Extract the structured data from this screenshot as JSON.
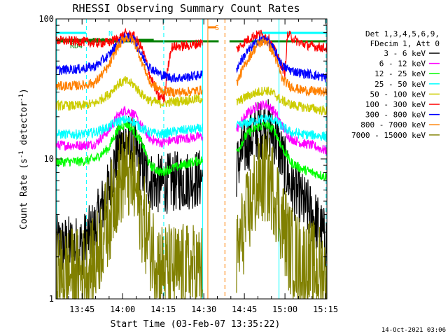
{
  "chart_data": {
    "type": "line",
    "title": "RHESSI Observing Summary Count Rates",
    "xlabel": "Start Time (03-Feb-07 13:35:22)",
    "ylabel": "Count Rate (s⁻¹ detector⁻¹)",
    "ylabel_parts": [
      "Count Rate (s",
      "-1",
      " detector",
      "-1",
      ")"
    ],
    "yscale": "log",
    "ylim": [
      1,
      100
    ],
    "xlim_minutes": [
      35.37,
      135.5
    ],
    "x_unit": "minutes after 13:00 UT",
    "x_ticks": [
      {
        "m": 45,
        "label": "13:45"
      },
      {
        "m": 60,
        "label": "14:00"
      },
      {
        "m": 75,
        "label": "14:15"
      },
      {
        "m": 90,
        "label": "14:30"
      },
      {
        "m": 105,
        "label": "14:45"
      },
      {
        "m": 120,
        "label": "15:00"
      },
      {
        "m": 135,
        "label": "15:15"
      }
    ],
    "y_ticks": [
      {
        "v": 1,
        "label": "1"
      },
      {
        "v": 10,
        "label": "10"
      },
      {
        "v": 100,
        "label": "100"
      }
    ],
    "legend": {
      "placement": "right",
      "header": [
        "Det 1,3,4,5,6,9,",
        "FDecim 1, Att 0"
      ],
      "entries": [
        {
          "label": "3 - 6 keV",
          "color": "#000000"
        },
        {
          "label": "6 - 12 keV",
          "color": "#ff00ff"
        },
        {
          "label": "12 - 25 keV",
          "color": "#00ff00"
        },
        {
          "label": "25 - 50 keV",
          "color": "#00ffff"
        },
        {
          "label": "50 - 100 keV",
          "color": "#cccc00"
        },
        {
          "label": "100 - 300 keV",
          "color": "#ff0000"
        },
        {
          "label": "300 - 800 keV",
          "color": "#0000ff"
        },
        {
          "label": "800 - 7000 keV",
          "color": "#ff8000"
        },
        {
          "label": "7000 - 15000 keV",
          "color": "#808000"
        }
      ]
    },
    "gaps_minutes": [
      [
        89.6,
        102.0
      ]
    ],
    "series": [
      {
        "name": "3 - 6 keV",
        "color": "#000000",
        "x": [
          35.5,
          45,
          50,
          55,
          58,
          61,
          64,
          67,
          70,
          74,
          78,
          82,
          86,
          89.5,
          102,
          106,
          110,
          113,
          116,
          119,
          122,
          126,
          130,
          135
        ],
        "y": [
          2.4,
          2.4,
          3.2,
          6.0,
          11,
          13.5,
          12,
          9,
          7,
          6.5,
          6.8,
          7.0,
          7.2,
          7.2,
          8.5,
          13,
          16,
          17,
          15,
          10,
          6.5,
          5.0,
          4.0,
          2.6
        ]
      },
      {
        "name": "6 - 12 keV",
        "color": "#ff00ff",
        "x": [
          35.5,
          45,
          50,
          55,
          58,
          61,
          64,
          67,
          70,
          74,
          78,
          82,
          86,
          89.5,
          102,
          106,
          110,
          113,
          116,
          119,
          122,
          126,
          130,
          135
        ],
        "y": [
          12.5,
          12.5,
          12.8,
          16,
          20,
          22.5,
          21,
          17,
          14,
          13,
          13.5,
          14,
          14.2,
          14.5,
          16,
          21,
          24,
          24.5,
          22,
          17,
          14,
          13,
          12.5,
          11.5
        ]
      },
      {
        "name": "12 - 25 keV",
        "color": "#00ff00",
        "x": [
          35.5,
          45,
          50,
          55,
          58,
          61,
          64,
          67,
          70,
          74,
          78,
          82,
          86,
          89.5,
          102,
          106,
          110,
          113,
          116,
          119,
          122,
          126,
          130,
          135
        ],
        "y": [
          9.5,
          9.6,
          10,
          12,
          16,
          18,
          16,
          13,
          9.0,
          8.0,
          8.5,
          9.0,
          9.5,
          9.8,
          11,
          15,
          17,
          17.5,
          16,
          12,
          9.5,
          8.5,
          8.0,
          7.5
        ]
      },
      {
        "name": "25 - 50 keV",
        "color": "#00ffff",
        "x": [
          35.5,
          45,
          50,
          55,
          58,
          61,
          64,
          67,
          70,
          74,
          78,
          82,
          86,
          89.5,
          102,
          106,
          110,
          113,
          116,
          119,
          122,
          126,
          130,
          135
        ],
        "y": [
          15,
          15,
          15.5,
          17,
          18.5,
          19,
          18.5,
          16.5,
          15.5,
          15,
          15.5,
          16,
          16.2,
          16.5,
          17,
          18,
          19,
          19.5,
          19,
          17,
          15.5,
          15,
          14.8,
          14.5
        ]
      },
      {
        "name": "50 - 100 keV",
        "color": "#cccc00",
        "x": [
          35.5,
          45,
          50,
          55,
          58,
          61,
          64,
          67,
          70,
          74,
          78,
          82,
          86,
          89.5,
          102,
          106,
          110,
          113,
          116,
          119,
          122,
          126,
          130,
          135
        ],
        "y": [
          24,
          24,
          25,
          29,
          34,
          36,
          34,
          29,
          26,
          25,
          25.5,
          26,
          26.5,
          27,
          25,
          28,
          30,
          31,
          29,
          26,
          24.5,
          23.5,
          23,
          22
        ]
      },
      {
        "name": "100 - 300 keV",
        "color": "#ff0000",
        "x": [
          35.5,
          45,
          50,
          55,
          58,
          61,
          64,
          67,
          70,
          73,
          75.5,
          78,
          82,
          86,
          89.5,
          102,
          105,
          108,
          111,
          114,
          117,
          120,
          121,
          124,
          127,
          130,
          135
        ],
        "y": [
          70,
          69,
          67,
          68,
          72,
          78,
          76,
          62,
          40,
          28,
          27,
          63,
          64,
          65,
          68,
          60,
          68,
          75,
          78,
          72,
          55,
          40,
          78,
          70,
          66,
          64,
          62
        ]
      },
      {
        "name": "300 - 800 keV",
        "color": "#0000ff",
        "x": [
          35.5,
          45,
          50,
          55,
          58,
          61,
          64,
          67,
          70,
          74,
          78,
          82,
          86,
          89.5,
          102,
          106,
          110,
          113,
          116,
          119,
          122,
          126,
          130,
          135
        ],
        "y": [
          43,
          44,
          46,
          55,
          66,
          74,
          72,
          55,
          45,
          40,
          38,
          38,
          39,
          40,
          44,
          58,
          70,
          72,
          60,
          46,
          43,
          41,
          40,
          38
        ]
      },
      {
        "name": "800 - 7000 keV",
        "color": "#ff8000",
        "x": [
          35.5,
          45,
          50,
          55,
          58,
          61,
          64,
          67,
          70,
          74,
          78,
          82,
          86,
          89.5,
          102,
          106,
          110,
          113,
          116,
          119,
          122,
          126,
          130,
          135
        ],
        "y": [
          33,
          33.5,
          35,
          46,
          62,
          74,
          70,
          50,
          35,
          31,
          30,
          30,
          30.5,
          31,
          34,
          50,
          66,
          70,
          55,
          37,
          33,
          31,
          30.5,
          30
        ]
      },
      {
        "name": "7000 - 15000 keV",
        "color": "#808000",
        "x": [
          35.5,
          45,
          50,
          55,
          58,
          61,
          64,
          67,
          70,
          74,
          78,
          82,
          86,
          89.5,
          102,
          106,
          110,
          113,
          116,
          119,
          122,
          126,
          130,
          135
        ],
        "y": [
          1.5,
          1.5,
          1.8,
          3.8,
          6.5,
          8.0,
          6.8,
          4.0,
          2.5,
          1.7,
          1.6,
          1.6,
          1.6,
          1.6,
          1.8,
          3.8,
          6.5,
          7.5,
          6.0,
          3.5,
          2.2,
          1.8,
          1.7,
          1.5
        ]
      }
    ],
    "flag_bars": [
      {
        "label": "N",
        "color": "#00ffff",
        "intervals": [
          [
            35.5,
            46.5
          ],
          [
            110.6,
            135.5
          ]
        ]
      },
      {
        "label": "RD0",
        "color": "#008000",
        "intervals": [
          [
            35.5,
            71.5
          ]
        ]
      },
      {
        "label": "RD4",
        "color": "#008000",
        "intervals": [
          [
            35.5,
            75.0
          ],
          [
            75.0,
            95.5
          ],
          [
            99.5,
            135.5
          ]
        ]
      },
      {
        "label": "S",
        "color": "#ff8000",
        "intervals": [
          [
            91.5,
            94.6
          ]
        ]
      }
    ],
    "vertical_lines": [
      {
        "m": 35.6,
        "color": "#00ffff",
        "style": "solid"
      },
      {
        "m": 46.6,
        "color": "#00ffff",
        "style": "dashed"
      },
      {
        "m": 75.2,
        "color": "#00ffff",
        "style": "dashed"
      },
      {
        "m": 89.6,
        "color": "#00ffff",
        "style": "solid"
      },
      {
        "m": 91.5,
        "color": "#ff8000",
        "style": "solid"
      },
      {
        "m": 97.8,
        "color": "#ff8000",
        "style": "dashed"
      },
      {
        "m": 117.8,
        "color": "#00ffff",
        "style": "solid"
      },
      {
        "m": 135.2,
        "color": "#00ffff",
        "style": "dashed"
      }
    ],
    "footer": "14-Oct-2021 03:06"
  }
}
